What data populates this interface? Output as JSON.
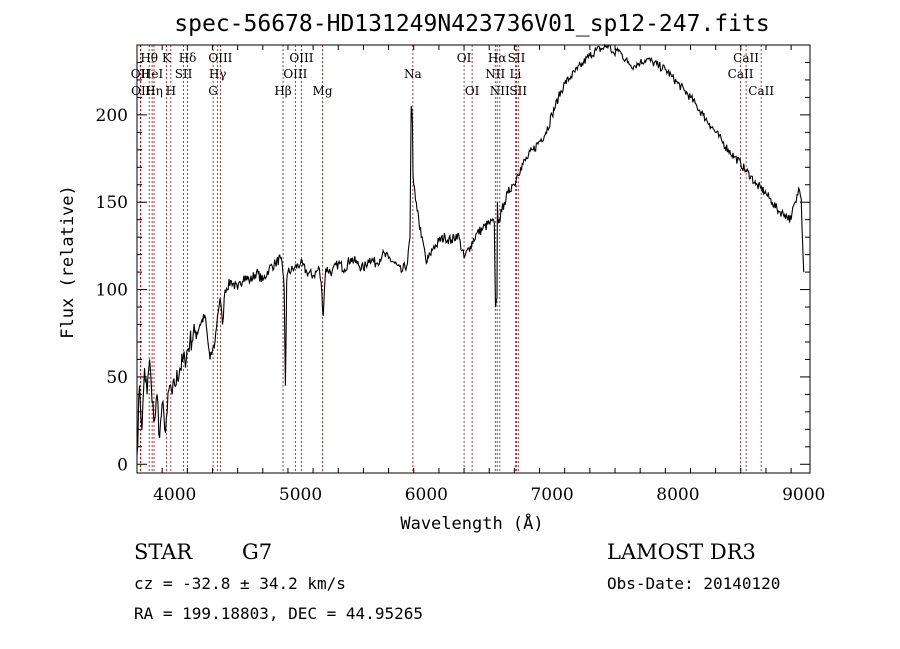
{
  "chart_data": {
    "type": "line",
    "title": "spec-56678-HD131249N423736V01_sp12-247.fits",
    "xlabel": "Wavelength (Å)",
    "ylabel": "Flux (relative)",
    "xlim": [
      3700,
      9050
    ],
    "ylim": [
      -5,
      240
    ],
    "xticks": [
      4000,
      5000,
      6000,
      7000,
      8000,
      9000
    ],
    "yticks": [
      0,
      50,
      100,
      150,
      200
    ],
    "series": [
      {
        "name": "flux",
        "x": [
          3700,
          3720,
          3740,
          3760,
          3780,
          3800,
          3820,
          3840,
          3860,
          3880,
          3900,
          3920,
          3940,
          3960,
          3980,
          4000,
          4040,
          4080,
          4120,
          4160,
          4200,
          4240,
          4280,
          4300,
          4320,
          4340,
          4360,
          4380,
          4400,
          4450,
          4500,
          4550,
          4600,
          4650,
          4700,
          4750,
          4800,
          4840,
          4860,
          4870,
          4880,
          4890,
          4900,
          4950,
          5000,
          5050,
          5100,
          5150,
          5170,
          5180,
          5190,
          5200,
          5250,
          5300,
          5350,
          5400,
          5450,
          5500,
          5550,
          5600,
          5650,
          5700,
          5750,
          5800,
          5850,
          5870,
          5880,
          5890,
          5893,
          5895,
          5900,
          5910,
          5920,
          5940,
          5960,
          5980,
          6000,
          6030,
          6060,
          6080,
          6100,
          6150,
          6200,
          6250,
          6300,
          6350,
          6400,
          6450,
          6500,
          6540,
          6550,
          6562,
          6565,
          6570,
          6580,
          6600,
          6620,
          6650,
          6680,
          6700,
          6720,
          6750,
          6800,
          6850,
          6900,
          6950,
          7000,
          7050,
          7100,
          7150,
          7200,
          7250,
          7300,
          7350,
          7400,
          7450,
          7480,
          7500,
          7520,
          7550,
          7600,
          7650,
          7700,
          7750,
          7800,
          7850,
          7900,
          7950,
          8000,
          8050,
          8100,
          8150,
          8200,
          8250,
          8300,
          8350,
          8400,
          8450,
          8500,
          8540,
          8580,
          8620,
          8660,
          8700,
          8750,
          8800,
          8850,
          8900,
          8920,
          8940,
          8960,
          8980,
          9000
        ],
        "values": [
          5,
          45,
          20,
          55,
          40,
          60,
          35,
          25,
          40,
          15,
          35,
          20,
          30,
          45,
          40,
          45,
          55,
          60,
          70,
          75,
          80,
          85,
          60,
          65,
          70,
          85,
          95,
          80,
          100,
          105,
          100,
          108,
          105,
          110,
          105,
          112,
          115,
          118,
          110,
          100,
          45,
          105,
          110,
          112,
          115,
          110,
          108,
          112,
          98,
          85,
          100,
          112,
          110,
          115,
          112,
          118,
          115,
          112,
          118,
          115,
          120,
          118,
          115,
          110,
          115,
          130,
          205,
          195,
          170,
          165,
          160,
          155,
          150,
          140,
          130,
          125,
          115,
          120,
          125,
          125,
          128,
          130,
          128,
          132,
          118,
          125,
          132,
          135,
          138,
          138,
          90,
          95,
          150,
          140,
          140,
          145,
          150,
          155,
          160,
          160,
          165,
          170,
          175,
          180,
          185,
          190,
          200,
          210,
          218,
          222,
          226,
          230,
          234,
          237,
          238,
          240,
          236,
          234,
          238,
          235,
          230,
          228,
          230,
          232,
          230,
          228,
          226,
          222,
          218,
          214,
          210,
          205,
          200,
          195,
          190,
          185,
          180,
          176,
          172,
          168,
          165,
          160,
          158,
          155,
          150,
          145,
          143,
          140,
          148,
          150,
          158,
          152,
          110
        ]
      }
    ],
    "lines": [
      {
        "label": "Hθ",
        "x": 3797,
        "row": 1
      },
      {
        "label": "OII",
        "x": 3727,
        "row": 2
      },
      {
        "label": "OII",
        "x": 3730,
        "row": 3
      },
      {
        "label": "HeI",
        "x": 3820,
        "row": 2
      },
      {
        "label": "Hη",
        "x": 3835,
        "row": 3
      },
      {
        "label": "K",
        "x": 3934,
        "row": 1
      },
      {
        "label": "H",
        "x": 3969,
        "row": 3
      },
      {
        "label": "SII",
        "x": 4070,
        "row": 2
      },
      {
        "label": "Hδ",
        "x": 4102,
        "row": 1
      },
      {
        "label": "OIII",
        "x": 4363,
        "row": 1
      },
      {
        "label": "Hγ",
        "x": 4341,
        "row": 2
      },
      {
        "label": "G",
        "x": 4305,
        "row": 3
      },
      {
        "label": "Hβ",
        "x": 4861,
        "row": 3
      },
      {
        "label": "OIII",
        "x": 5007,
        "row": 1
      },
      {
        "label": "OIII",
        "x": 4959,
        "row": 2
      },
      {
        "label": "Mg",
        "x": 5175,
        "row": 3
      },
      {
        "label": "Na",
        "x": 5893,
        "row": 2
      },
      {
        "label": "OI",
        "x": 6300,
        "row": 1
      },
      {
        "label": "OI",
        "x": 6364,
        "row": 3
      },
      {
        "label": "Hα",
        "x": 6563,
        "row": 1
      },
      {
        "label": "NII",
        "x": 6548,
        "row": 2
      },
      {
        "label": "NII",
        "x": 6584,
        "row": 3
      },
      {
        "label": "SII",
        "x": 6717,
        "row": 1
      },
      {
        "label": "Li",
        "x": 6708,
        "row": 2
      },
      {
        "label": "SII",
        "x": 6731,
        "row": 3
      },
      {
        "label": "CaII",
        "x": 8542,
        "row": 1
      },
      {
        "label": "CaII",
        "x": 8498,
        "row": 2
      },
      {
        "label": "CaII",
        "x": 8662,
        "row": 3
      }
    ]
  },
  "info": {
    "obj_class": "STAR",
    "subclass": "G7",
    "survey": "LAMOST DR3",
    "cz": "cz = -32.8 ± 34.2 km/s",
    "obs_date": "Obs-Date: 20140120",
    "radec": "RA = 199.18803, DEC =  44.95265"
  }
}
